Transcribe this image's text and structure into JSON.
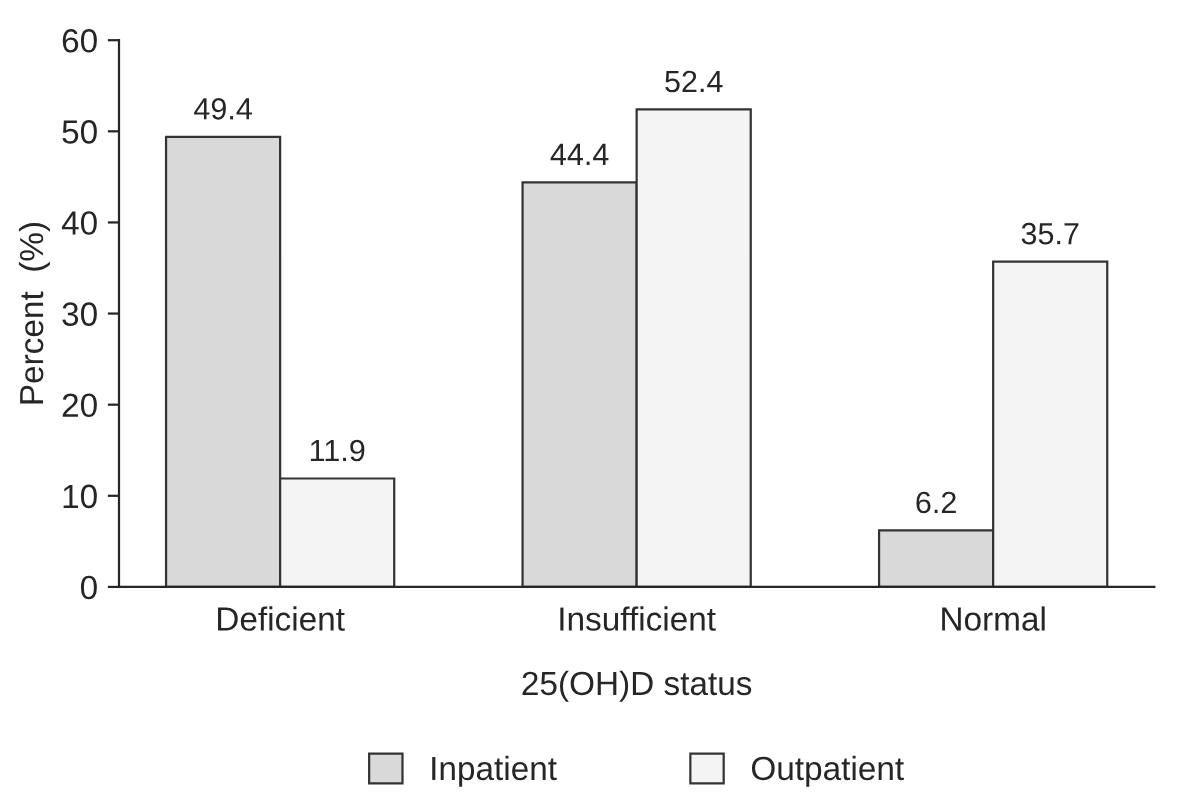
{
  "chart_data": {
    "type": "bar",
    "xlabel": "25(OH)D status",
    "ylabel": "Percent  (%)",
    "categories": [
      "Deficient",
      "Insufficient",
      "Normal"
    ],
    "series": [
      {
        "name": "Inpatient",
        "color": "#d9d9d9",
        "values": [
          49.4,
          44.4,
          6.2
        ]
      },
      {
        "name": "Outpatient",
        "color": "#f4f4f4",
        "values": [
          11.9,
          52.4,
          35.7
        ]
      }
    ],
    "ylim": [
      0,
      60
    ],
    "yticks": [
      0,
      10,
      20,
      30,
      40,
      50,
      60
    ],
    "data_labels": true,
    "legend": "bottom",
    "grid": false
  }
}
